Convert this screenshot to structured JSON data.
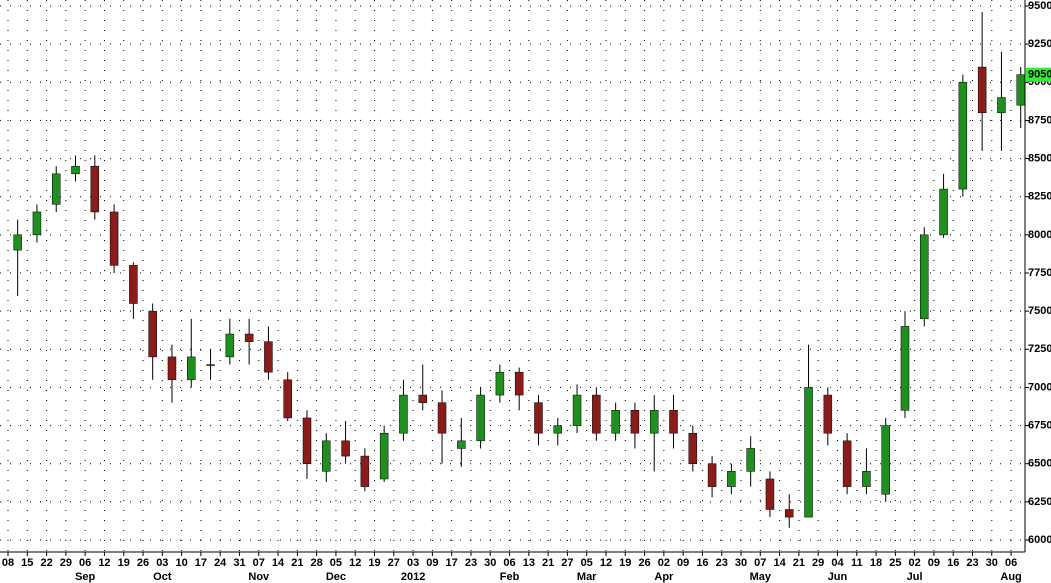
{
  "chart_data": {
    "type": "candlestick",
    "categories": [
      "08",
      "15",
      "22",
      "29",
      "06",
      "12",
      "19",
      "26",
      "03",
      "10",
      "17",
      "24",
      "31",
      "07",
      "14",
      "21",
      "28",
      "05",
      "12",
      "19",
      "27",
      "03",
      "09",
      "17",
      "23",
      "30",
      "06",
      "13",
      "21",
      "27",
      "05",
      "12",
      "19",
      "26",
      "02",
      "09",
      "16",
      "23",
      "30",
      "07",
      "14",
      "21",
      "29",
      "04",
      "11",
      "18",
      "25",
      "02",
      "09",
      "16",
      "23",
      "30",
      "06"
    ],
    "months": [
      "Sep",
      "Oct",
      "Nov",
      "Dec",
      "2012",
      "Feb",
      "Mar",
      "Apr",
      "May",
      "Jun",
      "Jul",
      "Aug"
    ],
    "open": [
      7900,
      8000,
      8200,
      8400,
      8450,
      8150,
      7800,
      7500,
      7200,
      7050,
      7150,
      7200,
      7350,
      7300,
      7050,
      6800,
      6450,
      6650,
      6550,
      6400,
      6700,
      6950,
      6900,
      6600,
      6650,
      6950,
      7100,
      6900,
      6700,
      6750,
      6950,
      6700,
      6850,
      6700,
      6850,
      6700,
      6500,
      6350,
      6450,
      6400,
      6200,
      6150,
      6950,
      6650,
      6350,
      6300,
      6850,
      7450,
      8000,
      8300,
      9100,
      8800,
      8850
    ],
    "high": [
      8100,
      8200,
      8450,
      8520,
      8520,
      8200,
      7820,
      7550,
      7280,
      7450,
      7250,
      7450,
      7450,
      7400,
      7100,
      6850,
      6700,
      6780,
      6600,
      6750,
      7050,
      7150,
      6980,
      6800,
      7000,
      7150,
      7130,
      6950,
      6800,
      7020,
      7000,
      6900,
      6900,
      6950,
      6950,
      6750,
      6550,
      6500,
      6680,
      6450,
      6300,
      7280,
      7000,
      6700,
      6600,
      6800,
      7500,
      8050,
      8400,
      9050,
      9460,
      9200,
      9100
    ],
    "low": [
      7600,
      7950,
      8150,
      8350,
      8100,
      7750,
      7450,
      7050,
      6900,
      7000,
      7050,
      7150,
      7150,
      7050,
      6780,
      6400,
      6380,
      6500,
      6320,
      6380,
      6650,
      6850,
      6500,
      6480,
      6600,
      6900,
      6850,
      6620,
      6620,
      6700,
      6650,
      6650,
      6600,
      6450,
      6600,
      6450,
      6280,
      6300,
      6350,
      6150,
      6080,
      6150,
      6620,
      6300,
      6300,
      6250,
      6800,
      7400,
      7980,
      8250,
      8550,
      8550,
      8700
    ],
    "close": [
      8000,
      8150,
      8400,
      8450,
      8150,
      7800,
      7550,
      7200,
      7050,
      7200,
      7150,
      7350,
      7300,
      7100,
      6800,
      6500,
      6650,
      6550,
      6350,
      6700,
      6950,
      6900,
      6700,
      6650,
      6950,
      7100,
      6950,
      6700,
      6750,
      6950,
      6700,
      6850,
      6700,
      6850,
      6700,
      6500,
      6350,
      6450,
      6600,
      6200,
      6150,
      7000,
      6700,
      6350,
      6450,
      6750,
      7400,
      8000,
      8300,
      9000,
      8800,
      8900,
      9050
    ],
    "up_color": "#1f8f1f",
    "down_color": "#8b1c1c",
    "last_price": 9050,
    "last_price_color": "#33ee33",
    "ylim": [
      6000,
      9500
    ],
    "yticks": [
      6000,
      6250,
      6500,
      6750,
      7000,
      7250,
      7500,
      7750,
      8000,
      8250,
      8500,
      8750,
      9000,
      9250,
      9500
    ],
    "grid": true
  }
}
